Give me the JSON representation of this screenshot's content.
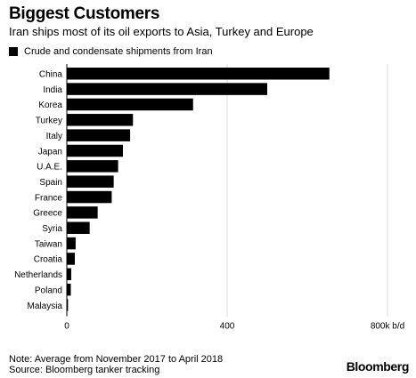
{
  "header": {
    "title": "Biggest Customers",
    "subtitle": "Iran ships most of its oil exports to Asia, Turkey and Europe"
  },
  "footer": {
    "note": "Note: Average from November 2017 to April 2018",
    "source": "Source: Bloomberg tanker tracking",
    "brand": "Bloomberg"
  },
  "colors": {
    "bar": "#000000",
    "grid": "#d9d9d9",
    "text": "#000000"
  },
  "chart_data": {
    "type": "bar",
    "orientation": "horizontal",
    "title": "Biggest Customers",
    "subtitle": "Iran ships most of its oil exports to Asia, Turkey and Europe",
    "legend": "Crude and condensate shipments from Iran",
    "legend_position": "top-left",
    "categories": [
      "China",
      "India",
      "Korea",
      "Turkey",
      "Italy",
      "Japan",
      "U.A.E.",
      "Spain",
      "France",
      "Greece",
      "Syria",
      "Taiwan",
      "Croatia",
      "Netherlands",
      "Poland",
      "Malaysia"
    ],
    "series": [
      {
        "name": "Crude and condensate shipments from Iran",
        "values": [
          655,
          500,
          315,
          165,
          158,
          140,
          128,
          117,
          112,
          77,
          57,
          22,
          20,
          11,
          10,
          3
        ]
      }
    ],
    "xlim": [
      0,
      800
    ],
    "xticks": [
      0,
      400,
      800
    ],
    "xtick_labels": [
      "0",
      "400",
      "800k b/d"
    ],
    "grid": true
  }
}
